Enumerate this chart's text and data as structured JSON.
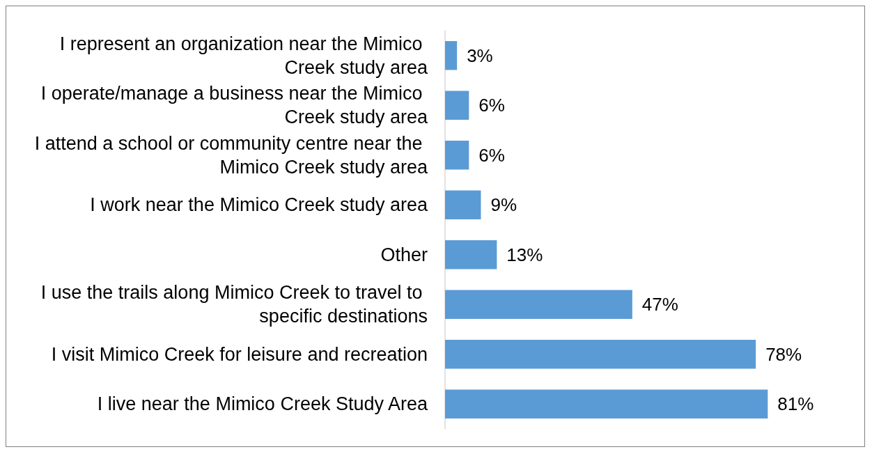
{
  "chart_data": {
    "type": "bar",
    "orientation": "horizontal",
    "categories": [
      "I represent an organization near the Mimico Creek study area",
      "I operate/manage a business near the Mimico Creek study area",
      "I attend a school or community centre near the Mimico Creek study area",
      "I work near the Mimico Creek study area",
      "Other",
      "I use the trails along Mimico Creek to travel to specific destinations",
      "I visit Mimico Creek for leisure and recreation",
      "I live near the Mimico Creek Study Area"
    ],
    "values": [
      3,
      6,
      6,
      9,
      13,
      47,
      78,
      81
    ],
    "value_labels": [
      "3%",
      "6%",
      "6%",
      "9%",
      "13%",
      "47%",
      "78%",
      "81%"
    ],
    "color": "#5b9bd5"
  }
}
